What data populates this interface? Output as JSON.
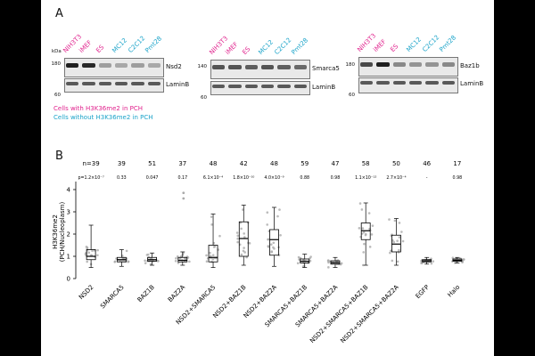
{
  "colors": {
    "with_pch": "#e0208c",
    "without_pch": "#1aa3c9",
    "band": "#1a1a1a"
  },
  "panel_a": {
    "letter": "A",
    "kda_label": "kDa",
    "lanes": [
      {
        "name": "NIH3T3",
        "color": "#e0208c"
      },
      {
        "name": "iMEF",
        "color": "#e0208c"
      },
      {
        "name": "ES",
        "color": "#e0208c"
      },
      {
        "name": "MC12",
        "color": "#1aa3c9"
      },
      {
        "name": "C2C12",
        "color": "#1aa3c9"
      },
      {
        "name": "Pmt28",
        "color": "#1aa3c9"
      }
    ],
    "blots": [
      {
        "marker_top": "180",
        "marker_bottom": "60",
        "target": "Nsd2",
        "loading": "LaminB"
      },
      {
        "marker_top": "140",
        "marker_bottom": "60",
        "target": "Smarca5",
        "loading": "LaminB"
      },
      {
        "marker_top": "180",
        "marker_bottom": "60",
        "target": "Baz1b",
        "loading": "LaminB"
      }
    ],
    "target_band_intensity": [
      [
        0.95,
        0.9,
        0.35,
        0.3,
        0.35,
        0.3
      ],
      [
        0.7,
        0.7,
        0.65,
        0.7,
        0.65,
        0.6
      ],
      [
        0.75,
        0.95,
        0.45,
        0.4,
        0.4,
        0.45
      ]
    ],
    "legend_with": "Cells with H3K36me2 in PCH",
    "legend_without": "Cells without H3K36me2 in PCH"
  },
  "panel_b": {
    "letter": "B"
  },
  "chart_data": {
    "type": "box",
    "ylabel": "H3K36me2 (PCH/Nucleoplasm)",
    "ylim": [
      0,
      4.2
    ],
    "yticks": [
      "0",
      "1",
      "2",
      "3",
      "4"
    ],
    "categories": [
      "NSD2",
      "SMARCA5",
      "BAZ1B",
      "BAZ2A",
      "NSD2+SMARCA5",
      "NSD2+BAZ1B",
      "NSD2+BAZ2A",
      "SMARCA5+BAZ1B",
      "SMARCA5+BAZ2A",
      "NSD2+SMARCA5+BAZ1B",
      "NSD2+SMARCA5+BAZ2A",
      "EGFP",
      "Halo"
    ],
    "n": [
      "n=39",
      "39",
      "51",
      "37",
      "48",
      "42",
      "48",
      "59",
      "47",
      "58",
      "50",
      "46",
      "17"
    ],
    "p": [
      "p=1.2×10⁻⁷",
      "0.33",
      "0.047",
      "0.17",
      "6.1×10⁻⁴",
      "1.8×10⁻¹⁰",
      "4.0×10⁻⁹",
      "0.88",
      "0.98",
      "1.1×10⁻¹²",
      "2.7×10⁻⁴",
      "-",
      "0.98"
    ],
    "boxes": [
      {
        "min": 0.5,
        "q1": 0.85,
        "median": 1.0,
        "q3": 1.3,
        "max": 2.4
      },
      {
        "min": 0.55,
        "q1": 0.75,
        "median": 0.85,
        "q3": 0.95,
        "max": 1.3
      },
      {
        "min": 0.6,
        "q1": 0.78,
        "median": 0.85,
        "q3": 0.95,
        "max": 1.15
      },
      {
        "min": 0.6,
        "q1": 0.75,
        "median": 0.82,
        "q3": 0.95,
        "max": 1.2
      },
      {
        "min": 0.5,
        "q1": 0.75,
        "median": 0.95,
        "q3": 1.5,
        "max": 2.9
      },
      {
        "min": 0.6,
        "q1": 1.0,
        "median": 1.8,
        "q3": 2.55,
        "max": 3.3
      },
      {
        "min": 0.55,
        "q1": 1.05,
        "median": 1.75,
        "q3": 2.2,
        "max": 3.2
      },
      {
        "min": 0.5,
        "q1": 0.7,
        "median": 0.78,
        "q3": 0.88,
        "max": 1.1
      },
      {
        "min": 0.5,
        "q1": 0.65,
        "median": 0.72,
        "q3": 0.8,
        "max": 0.95
      },
      {
        "min": 0.6,
        "q1": 1.75,
        "median": 2.15,
        "q3": 2.5,
        "max": 3.4
      },
      {
        "min": 0.6,
        "q1": 1.2,
        "median": 1.55,
        "q3": 1.95,
        "max": 2.7
      },
      {
        "min": 0.65,
        "q1": 0.75,
        "median": 0.8,
        "q3": 0.85,
        "max": 0.95
      },
      {
        "min": 0.7,
        "q1": 0.78,
        "median": 0.82,
        "q3": 0.88,
        "max": 0.95
      }
    ],
    "outliers": [
      [],
      [],
      [],
      [
        3.6,
        3.85
      ],
      [],
      [],
      [],
      [],
      [],
      [],
      [],
      [],
      []
    ]
  }
}
